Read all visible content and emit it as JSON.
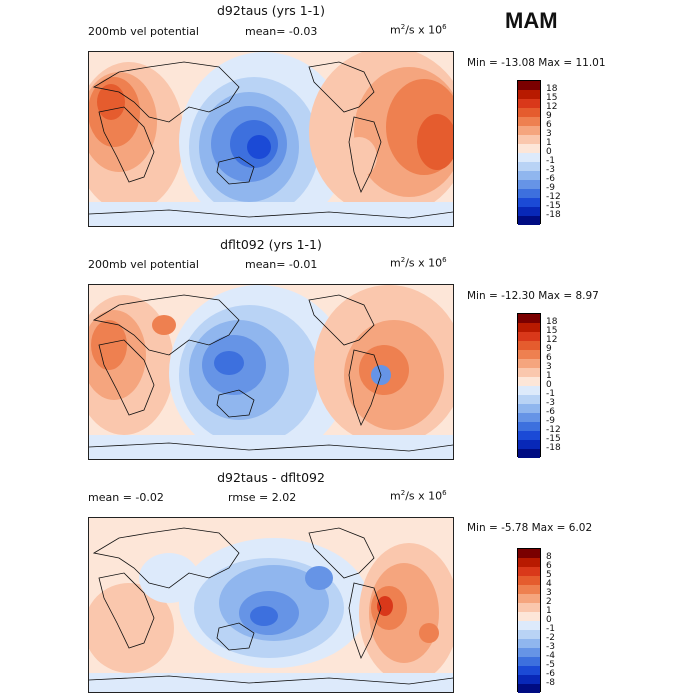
{
  "season": "MAM",
  "panels": [
    {
      "title": "d92taus (yrs 1-1)",
      "left_label": "200mb vel potential",
      "mean_text": "mean=  -0.03",
      "units_text": "m",
      "units_sup": "2",
      "units_mid": "/s x 10",
      "units_sup2": "6",
      "minmax": "Min = -13.08 Max =  11.01",
      "levels": [
        "18",
        "15",
        "12",
        "9",
        "6",
        "3",
        "1",
        "0",
        "-1",
        "-3",
        "-6",
        "-9",
        "-12",
        "-15",
        "-18"
      ]
    },
    {
      "title": "dflt092 (yrs 1-1)",
      "left_label": "200mb vel potential",
      "mean_text": "mean=  -0.01",
      "units_text": "m",
      "units_sup": "2",
      "units_mid": "/s x 10",
      "units_sup2": "6",
      "minmax": "Min = -12.30 Max =   8.97",
      "levels": [
        "18",
        "15",
        "12",
        "9",
        "6",
        "3",
        "1",
        "0",
        "-1",
        "-3",
        "-6",
        "-9",
        "-12",
        "-15",
        "-18"
      ]
    },
    {
      "title": "d92taus - dflt092",
      "mean_text": "mean =  -0.02",
      "rmse_text": "rmse =   2.02",
      "units_text": "m",
      "units_sup": "2",
      "units_mid": "/s x 10",
      "units_sup2": "6",
      "minmax": "Min =  -5.78 Max =   6.02",
      "levels": [
        "8",
        "6",
        "5",
        "4",
        "3",
        "2",
        "1",
        "0",
        "-1",
        "-2",
        "-3",
        "-4",
        "-5",
        "-6",
        "-8"
      ]
    }
  ],
  "colors": {
    "palette": [
      "#7a0000",
      "#b81a00",
      "#d9381a",
      "#e55c2e",
      "#ee8050",
      "#f5a57e",
      "#fac7ad",
      "#fde6d8",
      "#ddeafb",
      "#b9d3f5",
      "#90b6ee",
      "#6694e6",
      "#3d70de",
      "#1b4ad6",
      "#0828b8",
      "#000c82"
    ],
    "land_line": "#111111"
  }
}
